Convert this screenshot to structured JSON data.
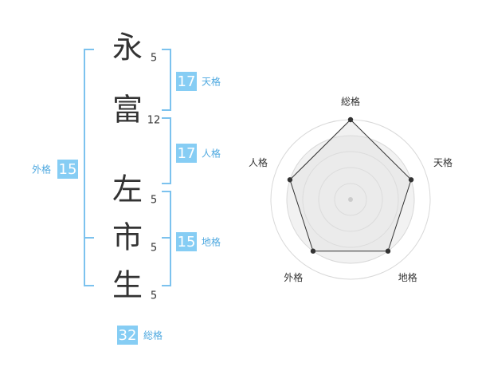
{
  "name": {
    "characters": [
      {
        "char": "永",
        "strokes": 5
      },
      {
        "char": "富",
        "strokes": 12
      },
      {
        "char": "左",
        "strokes": 5
      },
      {
        "char": "市",
        "strokes": 5
      },
      {
        "char": "生",
        "strokes": 5
      }
    ]
  },
  "kakusu": [
    {
      "label": "天格",
      "value": 17
    },
    {
      "label": "人格",
      "value": 17
    },
    {
      "label": "地格",
      "value": 15
    },
    {
      "label": "外格",
      "value": 15
    },
    {
      "label": "総格",
      "value": 32
    }
  ],
  "radar": {
    "type": "radar",
    "axes": [
      "総格",
      "天格",
      "地格",
      "外格",
      "人格"
    ],
    "values": [
      5,
      4,
      4,
      4,
      4
    ],
    "rlim": [
      0,
      5
    ],
    "rticks": [
      1,
      2,
      3,
      4,
      5
    ]
  }
}
